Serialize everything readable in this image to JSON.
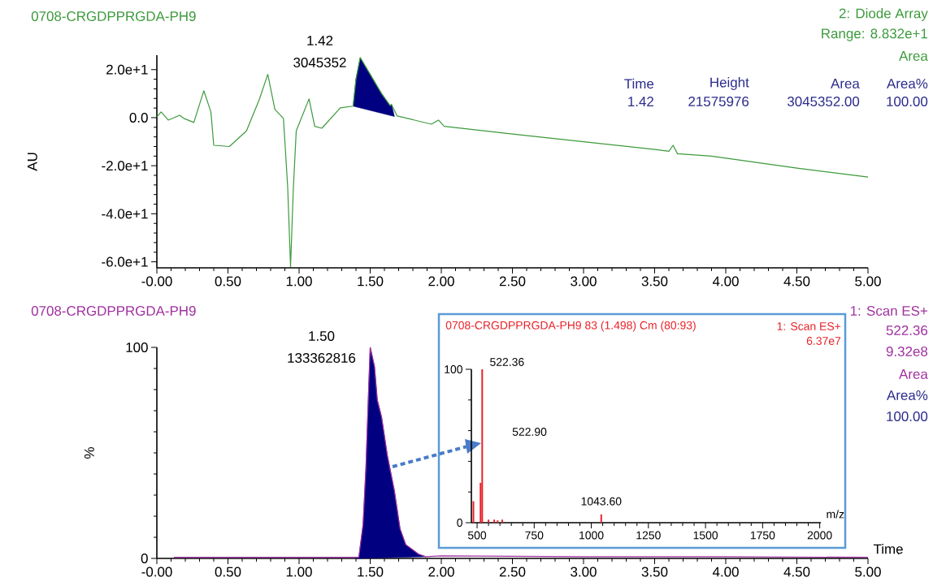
{
  "chart_data": [
    {
      "type": "line",
      "title": "0708-CRGDPPRGDA-PH9",
      "ylabel": "AU",
      "xlim": [
        0,
        5
      ],
      "ylim": [
        -62.5,
        26
      ],
      "xticks": [
        {
          "value": 0,
          "label": "-0.00"
        },
        {
          "value": 0.5,
          "label": "0.50"
        },
        {
          "value": 1,
          "label": "1.00"
        },
        {
          "value": 1.5,
          "label": "1.50"
        },
        {
          "value": 2,
          "label": "2.00"
        },
        {
          "value": 2.5,
          "label": "2.50"
        },
        {
          "value": 3,
          "label": "3.00"
        },
        {
          "value": 3.5,
          "label": "3.50"
        },
        {
          "value": 4,
          "label": "4.00"
        },
        {
          "value": 4.5,
          "label": "4.50"
        },
        {
          "value": 5,
          "label": "5.00"
        }
      ],
      "yticks": [
        {
          "value": 20,
          "label": "2.0e+1"
        },
        {
          "value": 0,
          "label": "0.0"
        },
        {
          "value": -20,
          "label": "-2.0e+1"
        },
        {
          "value": -40,
          "label": "-4.0e+1"
        },
        {
          "value": -60,
          "label": "-6.0e+1"
        }
      ],
      "series": [
        {
          "type": "area",
          "color": "#000080",
          "x": [
            1.38,
            1.4,
            1.43,
            1.5,
            1.58,
            1.64,
            1.65,
            1.67
          ],
          "values": [
            4.8,
            16,
            25,
            18,
            10,
            5,
            5.5,
            0.5
          ]
        },
        {
          "type": "line",
          "color": "#3c9a3c",
          "x": [
            0.0,
            0.03,
            0.08,
            0.16,
            0.19,
            0.26,
            0.33,
            0.38,
            0.4,
            0.51,
            0.63,
            0.72,
            0.78,
            0.83,
            0.89,
            0.92,
            0.94,
            0.96,
            0.98,
            1.07,
            1.11,
            1.16,
            1.29,
            1.38,
            1.4,
            1.43,
            1.5,
            1.58,
            1.64,
            1.65,
            1.69,
            1.93,
            1.98,
            2.02,
            2.5,
            3.0,
            3.5,
            3.6,
            3.63,
            3.66,
            3.9,
            4.5,
            5.0
          ],
          "values": [
            0.3,
            2.4,
            -1,
            1,
            -0.3,
            -2,
            11.2,
            2.4,
            -11.5,
            -12,
            -5.5,
            7.5,
            18,
            3.4,
            -0.3,
            -29,
            -62,
            -29,
            -5.5,
            7.8,
            -3.6,
            -4.4,
            4.1,
            4.8,
            16,
            25,
            18,
            10,
            5,
            5.5,
            0.7,
            -2.7,
            -1,
            -3.6,
            -6.8,
            -10,
            -13.2,
            -14,
            -11.5,
            -15,
            -16,
            -21,
            -24.7
          ]
        }
      ],
      "annotations": [
        {
          "text": "1.42",
          "x": 1.42,
          "y": 25
        },
        {
          "text": "3045352",
          "x": 1.42,
          "y": 25
        },
        "2: Diode Array",
        "Range: 8.832e+1",
        "Area",
        "Time",
        "Height",
        "Area",
        "Area%",
        "1.42",
        "21575976",
        "3045352.00",
        "100.00"
      ]
    },
    {
      "type": "line",
      "title": "0708-CRGDPPRGDA-PH9",
      "ylabel": "%",
      "xlabel": "Time",
      "xlim": [
        0,
        5
      ],
      "ylim": [
        0,
        100
      ],
      "xticks": [
        {
          "value": 0,
          "label": "-0.00"
        },
        {
          "value": 0.5,
          "label": "0.50"
        },
        {
          "value": 1,
          "label": "1.00"
        },
        {
          "value": 1.5,
          "label": "1.50"
        },
        {
          "value": 2,
          "label": "2.00"
        },
        {
          "value": 2.5,
          "label": "2.50"
        },
        {
          "value": 3,
          "label": "3.00"
        },
        {
          "value": 3.5,
          "label": "3.50"
        },
        {
          "value": 4,
          "label": "4.00"
        },
        {
          "value": 4.5,
          "label": "4.50"
        },
        {
          "value": 5,
          "label": "5.00"
        }
      ],
      "yticks": [
        0,
        100
      ],
      "series": [
        {
          "type": "area",
          "color": "#000080",
          "x": [
            1.4,
            1.42,
            1.45,
            1.47,
            1.49,
            1.5,
            1.53,
            1.55,
            1.58,
            1.62,
            1.67,
            1.71,
            1.75,
            1.84,
            1.89
          ],
          "values": [
            0,
            0.4,
            16,
            43,
            82,
            100,
            91,
            75,
            67,
            49,
            32,
            14,
            6.5,
            2,
            0.8
          ]
        },
        {
          "type": "line",
          "color": "#a030a0",
          "x": [
            0.12,
            1.4,
            1.42,
            1.45,
            1.47,
            1.49,
            1.5,
            1.53,
            1.55,
            1.58,
            1.62,
            1.67,
            1.71,
            1.75,
            1.84,
            1.89,
            2.0,
            3.0,
            4.0,
            5.0
          ],
          "values": [
            0.5,
            0.5,
            0.5,
            16,
            43,
            82,
            100,
            91,
            75,
            67,
            49,
            32,
            14,
            6.5,
            2,
            0.8,
            1.2,
            0.8,
            0.8,
            0.5
          ]
        }
      ],
      "annotations": [
        {
          "text": "1.50",
          "x": 1.5,
          "y": 100
        },
        {
          "text": "133362816",
          "x": 1.5,
          "y": 100
        },
        "1: Scan ES+",
        "522.36",
        "9.32e8",
        "Area",
        "Area%",
        "100.00"
      ]
    },
    {
      "type": "bar",
      "title": "0708-CRGDPPRGDA-PH9 83 (1.498) Cm (80:93)",
      "xlabel": "m/z",
      "xlim": [
        475,
        2005
      ],
      "ylim": [
        0,
        100
      ],
      "xticks": [
        500,
        750,
        1000,
        1250,
        1500,
        1750,
        2000
      ],
      "yticks": [
        0,
        100
      ],
      "x": [
        484,
        515,
        522.36,
        550,
        575,
        590,
        610,
        1043.6
      ],
      "series": [
        {
          "color": "#e8232a",
          "values": [
            14,
            26,
            100,
            2,
            2,
            1.5,
            2,
            5.4
          ]
        }
      ],
      "annotations": [
        {
          "text": "522.36",
          "x": 522.36,
          "y": 100
        },
        "522.90",
        {
          "text": "1043.60",
          "x": 1043.6,
          "y": 5.4
        },
        "1: Scan ES+",
        "6.37e7"
      ]
    }
  ]
}
